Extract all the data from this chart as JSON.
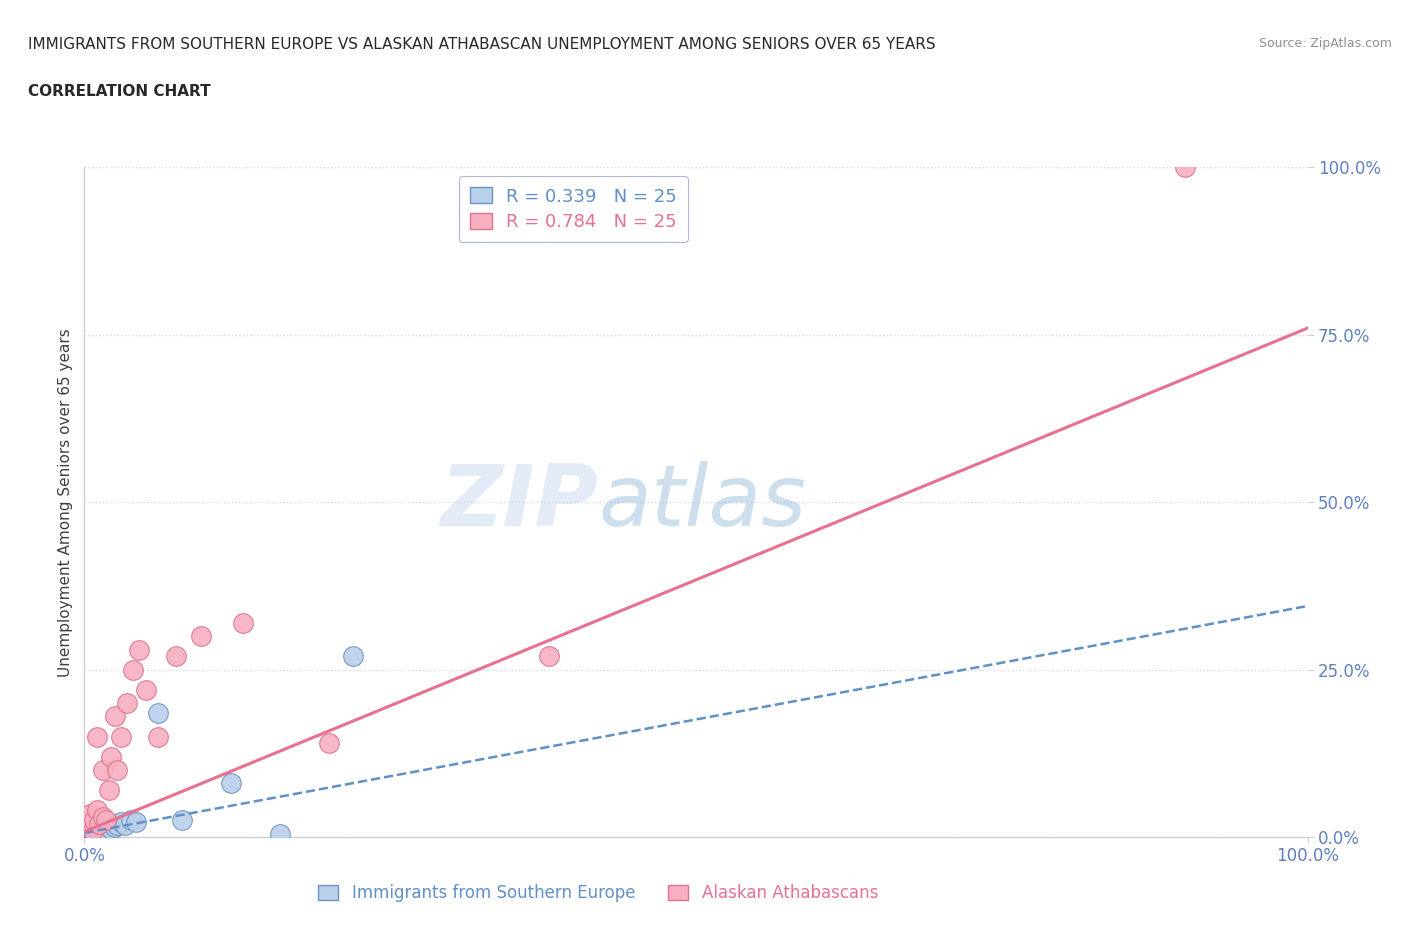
{
  "title_line1": "IMMIGRANTS FROM SOUTHERN EUROPE VS ALASKAN ATHABASCAN UNEMPLOYMENT AMONG SENIORS OVER 65 YEARS",
  "title_line2": "CORRELATION CHART",
  "source_text": "Source: ZipAtlas.com",
  "ylabel": "Unemployment Among Seniors over 65 years",
  "xlim": [
    0,
    1.0
  ],
  "ylim": [
    0,
    1.0
  ],
  "xtick_labels": [
    "0.0%",
    "100.0%"
  ],
  "ytick_labels": [
    "0.0%",
    "25.0%",
    "50.0%",
    "75.0%",
    "100.0%"
  ],
  "ytick_positions": [
    0.0,
    0.25,
    0.5,
    0.75,
    1.0
  ],
  "watermark_zip": "ZIP",
  "watermark_atlas": "atlas",
  "legend_blue_r": "0.339",
  "legend_blue_n": "25",
  "legend_pink_r": "0.784",
  "legend_pink_n": "25",
  "legend_label_blue": "Immigrants from Southern Europe",
  "legend_label_pink": "Alaskan Athabascans",
  "blue_marker_face": "#b8d0ea",
  "blue_marker_edge": "#7090c0",
  "pink_marker_face": "#f8b0c0",
  "pink_marker_edge": "#e07090",
  "blue_line_color": "#6090c8",
  "pink_line_color": "#e87090",
  "background_color": "#ffffff",
  "grid_color": "#d8d8e8",
  "spine_color": "#d0d0d0",
  "tick_color": "#6080c0",
  "title_color": "#282828",
  "ylabel_color": "#404040",
  "source_color": "#909090",
  "blue_scatter_x": [
    0.005,
    0.007,
    0.008,
    0.01,
    0.01,
    0.012,
    0.013,
    0.015,
    0.015,
    0.017,
    0.018,
    0.02,
    0.02,
    0.022,
    0.025,
    0.027,
    0.03,
    0.033,
    0.038,
    0.042,
    0.06,
    0.08,
    0.12,
    0.16,
    0.22
  ],
  "blue_scatter_y": [
    0.005,
    0.008,
    0.006,
    0.01,
    0.012,
    0.008,
    0.012,
    0.01,
    0.015,
    0.012,
    0.01,
    0.015,
    0.018,
    0.012,
    0.015,
    0.018,
    0.022,
    0.018,
    0.025,
    0.022,
    0.185,
    0.025,
    0.08,
    0.005,
    0.27
  ],
  "pink_scatter_x": [
    0.005,
    0.007,
    0.008,
    0.01,
    0.01,
    0.012,
    0.015,
    0.015,
    0.018,
    0.02,
    0.022,
    0.025,
    0.027,
    0.03,
    0.035,
    0.04,
    0.045,
    0.05,
    0.06,
    0.075,
    0.095,
    0.13,
    0.2,
    0.38,
    0.9
  ],
  "pink_scatter_y": [
    0.035,
    0.01,
    0.025,
    0.04,
    0.15,
    0.02,
    0.03,
    0.1,
    0.025,
    0.07,
    0.12,
    0.18,
    0.1,
    0.15,
    0.2,
    0.25,
    0.28,
    0.22,
    0.15,
    0.27,
    0.3,
    0.32,
    0.14,
    0.27,
    1.0
  ],
  "blue_line_x": [
    0.0,
    1.0
  ],
  "blue_line_y": [
    0.006,
    0.345
  ],
  "pink_line_x": [
    0.0,
    1.0
  ],
  "pink_line_y": [
    0.008,
    0.76
  ]
}
